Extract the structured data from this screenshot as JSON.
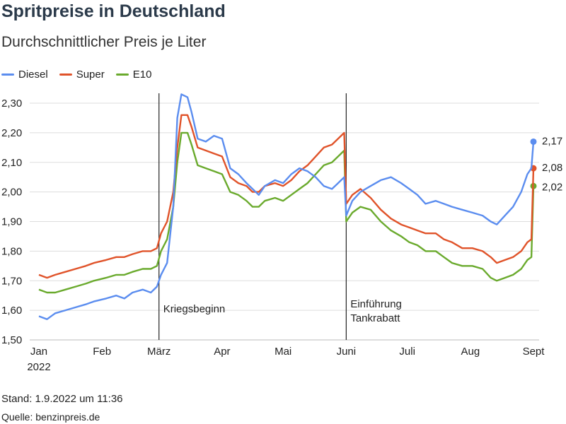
{
  "title": "Spritpreise in Deutschland",
  "subtitle": "Durchschnittlicher Preis je Liter",
  "footer": {
    "stand": "Stand: 1.9.2022 um 11:36",
    "quelle": "Quelle: benzinpreis.de"
  },
  "colors": {
    "diesel": "#5b8def",
    "super": "#e0532a",
    "e10": "#6aaa2d",
    "grid": "#dddddd",
    "annotation": "#222222"
  },
  "chart_data": {
    "type": "line",
    "ylim": [
      1.5,
      2.3
    ],
    "grid": "horizontal",
    "legend": "top-left",
    "yticks": [
      {
        "v": 1.5,
        "label": "1,50"
      },
      {
        "v": 1.6,
        "label": "1,60"
      },
      {
        "v": 1.7,
        "label": "1,70"
      },
      {
        "v": 1.8,
        "label": "1,80"
      },
      {
        "v": 1.9,
        "label": "1,90"
      },
      {
        "v": 2.0,
        "label": "2,00"
      },
      {
        "v": 2.1,
        "label": "2,10"
      },
      {
        "v": 2.2,
        "label": "2,20"
      },
      {
        "v": 2.3,
        "label": "2,30"
      }
    ],
    "xticks": [
      {
        "date": "2022-01-01",
        "label": "Jan",
        "sub": "2022"
      },
      {
        "date": "2022-02-01",
        "label": "Feb"
      },
      {
        "date": "2022-03-01",
        "label": "März"
      },
      {
        "date": "2022-04-01",
        "label": "Apr"
      },
      {
        "date": "2022-05-01",
        "label": "Mai"
      },
      {
        "date": "2022-06-01",
        "label": "Juni"
      },
      {
        "date": "2022-07-01",
        "label": "Juli"
      },
      {
        "date": "2022-08-01",
        "label": "Aug"
      },
      {
        "date": "2022-09-01",
        "label": "Sept"
      }
    ],
    "annotations": [
      {
        "date": "2022-03-01",
        "lines": [
          "Kriegsbeginn"
        ]
      },
      {
        "date": "2022-06-01",
        "lines": [
          "Einführung",
          "Tankrabatt"
        ]
      }
    ],
    "series": [
      {
        "name": "Diesel",
        "color_key": "diesel",
        "end_label": "2,17",
        "points": [
          [
            "2022-01-01",
            1.58
          ],
          [
            "2022-01-05",
            1.57
          ],
          [
            "2022-01-09",
            1.59
          ],
          [
            "2022-01-14",
            1.6
          ],
          [
            "2022-01-19",
            1.61
          ],
          [
            "2022-01-24",
            1.62
          ],
          [
            "2022-01-28",
            1.63
          ],
          [
            "2022-02-03",
            1.64
          ],
          [
            "2022-02-08",
            1.65
          ],
          [
            "2022-02-12",
            1.64
          ],
          [
            "2022-02-16",
            1.66
          ],
          [
            "2022-02-21",
            1.67
          ],
          [
            "2022-02-25",
            1.66
          ],
          [
            "2022-02-28",
            1.68
          ],
          [
            "2022-03-02",
            1.72
          ],
          [
            "2022-03-05",
            1.76
          ],
          [
            "2022-03-08",
            1.95
          ],
          [
            "2022-03-10",
            2.25
          ],
          [
            "2022-03-12",
            2.33
          ],
          [
            "2022-03-15",
            2.32
          ],
          [
            "2022-03-17",
            2.27
          ],
          [
            "2022-03-20",
            2.18
          ],
          [
            "2022-03-24",
            2.17
          ],
          [
            "2022-03-28",
            2.19
          ],
          [
            "2022-04-01",
            2.18
          ],
          [
            "2022-04-05",
            2.08
          ],
          [
            "2022-04-09",
            2.06
          ],
          [
            "2022-04-13",
            2.03
          ],
          [
            "2022-04-16",
            2.01
          ],
          [
            "2022-04-19",
            1.99
          ],
          [
            "2022-04-22",
            2.02
          ],
          [
            "2022-04-27",
            2.04
          ],
          [
            "2022-05-01",
            2.03
          ],
          [
            "2022-05-05",
            2.06
          ],
          [
            "2022-05-09",
            2.08
          ],
          [
            "2022-05-13",
            2.07
          ],
          [
            "2022-05-17",
            2.05
          ],
          [
            "2022-05-21",
            2.02
          ],
          [
            "2022-05-25",
            2.01
          ],
          [
            "2022-05-28",
            2.03
          ],
          [
            "2022-05-31",
            2.05
          ],
          [
            "2022-06-01",
            1.92
          ],
          [
            "2022-06-04",
            1.97
          ],
          [
            "2022-06-08",
            2.0
          ],
          [
            "2022-06-13",
            2.02
          ],
          [
            "2022-06-18",
            2.04
          ],
          [
            "2022-06-23",
            2.05
          ],
          [
            "2022-06-28",
            2.03
          ],
          [
            "2022-07-02",
            2.01
          ],
          [
            "2022-07-06",
            1.99
          ],
          [
            "2022-07-10",
            1.96
          ],
          [
            "2022-07-15",
            1.97
          ],
          [
            "2022-07-19",
            1.96
          ],
          [
            "2022-07-23",
            1.95
          ],
          [
            "2022-07-28",
            1.94
          ],
          [
            "2022-08-02",
            1.93
          ],
          [
            "2022-08-07",
            1.92
          ],
          [
            "2022-08-11",
            1.9
          ],
          [
            "2022-08-14",
            1.89
          ],
          [
            "2022-08-18",
            1.92
          ],
          [
            "2022-08-22",
            1.95
          ],
          [
            "2022-08-26",
            2.0
          ],
          [
            "2022-08-29",
            2.06
          ],
          [
            "2022-08-31",
            2.08
          ],
          [
            "2022-09-01",
            2.17
          ]
        ]
      },
      {
        "name": "Super",
        "color_key": "super",
        "end_label": "2,08",
        "points": [
          [
            "2022-01-01",
            1.72
          ],
          [
            "2022-01-05",
            1.71
          ],
          [
            "2022-01-09",
            1.72
          ],
          [
            "2022-01-14",
            1.73
          ],
          [
            "2022-01-19",
            1.74
          ],
          [
            "2022-01-24",
            1.75
          ],
          [
            "2022-01-28",
            1.76
          ],
          [
            "2022-02-03",
            1.77
          ],
          [
            "2022-02-08",
            1.78
          ],
          [
            "2022-02-12",
            1.78
          ],
          [
            "2022-02-16",
            1.79
          ],
          [
            "2022-02-21",
            1.8
          ],
          [
            "2022-02-25",
            1.8
          ],
          [
            "2022-02-28",
            1.81
          ],
          [
            "2022-03-02",
            1.86
          ],
          [
            "2022-03-05",
            1.9
          ],
          [
            "2022-03-08",
            2.0
          ],
          [
            "2022-03-10",
            2.15
          ],
          [
            "2022-03-12",
            2.26
          ],
          [
            "2022-03-15",
            2.26
          ],
          [
            "2022-03-17",
            2.22
          ],
          [
            "2022-03-20",
            2.15
          ],
          [
            "2022-03-24",
            2.14
          ],
          [
            "2022-03-28",
            2.13
          ],
          [
            "2022-04-01",
            2.12
          ],
          [
            "2022-04-05",
            2.05
          ],
          [
            "2022-04-09",
            2.03
          ],
          [
            "2022-04-13",
            2.02
          ],
          [
            "2022-04-16",
            2.0
          ],
          [
            "2022-04-19",
            2.0
          ],
          [
            "2022-04-22",
            2.02
          ],
          [
            "2022-04-27",
            2.03
          ],
          [
            "2022-05-01",
            2.02
          ],
          [
            "2022-05-05",
            2.04
          ],
          [
            "2022-05-09",
            2.07
          ],
          [
            "2022-05-13",
            2.09
          ],
          [
            "2022-05-17",
            2.12
          ],
          [
            "2022-05-21",
            2.15
          ],
          [
            "2022-05-25",
            2.16
          ],
          [
            "2022-05-28",
            2.18
          ],
          [
            "2022-05-31",
            2.2
          ],
          [
            "2022-06-01",
            1.96
          ],
          [
            "2022-06-04",
            1.99
          ],
          [
            "2022-06-08",
            2.01
          ],
          [
            "2022-06-13",
            1.98
          ],
          [
            "2022-06-18",
            1.94
          ],
          [
            "2022-06-23",
            1.91
          ],
          [
            "2022-06-28",
            1.89
          ],
          [
            "2022-07-02",
            1.88
          ],
          [
            "2022-07-06",
            1.87
          ],
          [
            "2022-07-10",
            1.86
          ],
          [
            "2022-07-15",
            1.86
          ],
          [
            "2022-07-19",
            1.84
          ],
          [
            "2022-07-23",
            1.83
          ],
          [
            "2022-07-28",
            1.81
          ],
          [
            "2022-08-02",
            1.81
          ],
          [
            "2022-08-07",
            1.8
          ],
          [
            "2022-08-11",
            1.78
          ],
          [
            "2022-08-14",
            1.76
          ],
          [
            "2022-08-18",
            1.77
          ],
          [
            "2022-08-22",
            1.78
          ],
          [
            "2022-08-26",
            1.8
          ],
          [
            "2022-08-29",
            1.83
          ],
          [
            "2022-08-31",
            1.84
          ],
          [
            "2022-09-01",
            2.08
          ]
        ]
      },
      {
        "name": "E10",
        "color_key": "e10",
        "end_label": "2,02",
        "points": [
          [
            "2022-01-01",
            1.67
          ],
          [
            "2022-01-05",
            1.66
          ],
          [
            "2022-01-09",
            1.66
          ],
          [
            "2022-01-14",
            1.67
          ],
          [
            "2022-01-19",
            1.68
          ],
          [
            "2022-01-24",
            1.69
          ],
          [
            "2022-01-28",
            1.7
          ],
          [
            "2022-02-03",
            1.71
          ],
          [
            "2022-02-08",
            1.72
          ],
          [
            "2022-02-12",
            1.72
          ],
          [
            "2022-02-16",
            1.73
          ],
          [
            "2022-02-21",
            1.74
          ],
          [
            "2022-02-25",
            1.74
          ],
          [
            "2022-02-28",
            1.75
          ],
          [
            "2022-03-02",
            1.8
          ],
          [
            "2022-03-05",
            1.84
          ],
          [
            "2022-03-08",
            1.95
          ],
          [
            "2022-03-10",
            2.1
          ],
          [
            "2022-03-12",
            2.2
          ],
          [
            "2022-03-15",
            2.2
          ],
          [
            "2022-03-17",
            2.16
          ],
          [
            "2022-03-20",
            2.09
          ],
          [
            "2022-03-24",
            2.08
          ],
          [
            "2022-03-28",
            2.07
          ],
          [
            "2022-04-01",
            2.06
          ],
          [
            "2022-04-05",
            2.0
          ],
          [
            "2022-04-09",
            1.99
          ],
          [
            "2022-04-13",
            1.97
          ],
          [
            "2022-04-16",
            1.95
          ],
          [
            "2022-04-19",
            1.95
          ],
          [
            "2022-04-22",
            1.97
          ],
          [
            "2022-04-27",
            1.98
          ],
          [
            "2022-05-01",
            1.97
          ],
          [
            "2022-05-05",
            1.99
          ],
          [
            "2022-05-09",
            2.01
          ],
          [
            "2022-05-13",
            2.03
          ],
          [
            "2022-05-17",
            2.06
          ],
          [
            "2022-05-21",
            2.09
          ],
          [
            "2022-05-25",
            2.1
          ],
          [
            "2022-05-28",
            2.12
          ],
          [
            "2022-05-31",
            2.14
          ],
          [
            "2022-06-01",
            1.9
          ],
          [
            "2022-06-04",
            1.93
          ],
          [
            "2022-06-08",
            1.95
          ],
          [
            "2022-06-13",
            1.94
          ],
          [
            "2022-06-18",
            1.9
          ],
          [
            "2022-06-23",
            1.87
          ],
          [
            "2022-06-28",
            1.85
          ],
          [
            "2022-07-02",
            1.83
          ],
          [
            "2022-07-06",
            1.82
          ],
          [
            "2022-07-10",
            1.8
          ],
          [
            "2022-07-15",
            1.8
          ],
          [
            "2022-07-19",
            1.78
          ],
          [
            "2022-07-23",
            1.76
          ],
          [
            "2022-07-28",
            1.75
          ],
          [
            "2022-08-02",
            1.75
          ],
          [
            "2022-08-07",
            1.74
          ],
          [
            "2022-08-11",
            1.71
          ],
          [
            "2022-08-14",
            1.7
          ],
          [
            "2022-08-18",
            1.71
          ],
          [
            "2022-08-22",
            1.72
          ],
          [
            "2022-08-26",
            1.74
          ],
          [
            "2022-08-29",
            1.77
          ],
          [
            "2022-08-31",
            1.78
          ],
          [
            "2022-09-01",
            2.02
          ]
        ]
      }
    ]
  }
}
